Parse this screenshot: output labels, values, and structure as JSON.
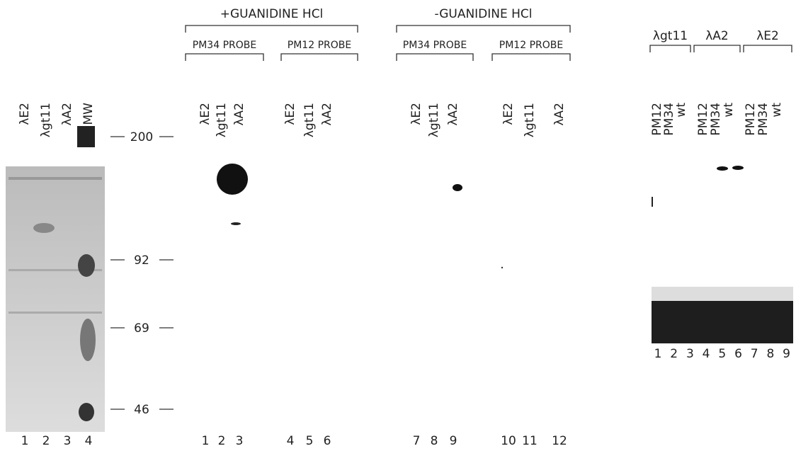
{
  "panel_a": {
    "lanes": [
      "λE2",
      "λgt11",
      "λA2",
      "MW"
    ],
    "lane_numbers": [
      "1",
      "2",
      "3",
      "4"
    ]
  },
  "markers": [
    "200",
    "92",
    "69",
    "46"
  ],
  "panel_b": {
    "groups": [
      {
        "title": "+GUANIDINE HCl",
        "probes": [
          {
            "label": "PM34 PROBE",
            "lanes": [
              "λE2",
              "λgt11",
              "λA2"
            ],
            "lane_numbers": [
              "1",
              "2",
              "3"
            ]
          },
          {
            "label": "PM12 PROBE",
            "lanes": [
              "λE2",
              "λgt11",
              "λA2"
            ],
            "lane_numbers": [
              "4",
              "5",
              "6"
            ]
          }
        ]
      },
      {
        "title": "-GUANIDINE HCl",
        "probes": [
          {
            "label": "PM34 PROBE",
            "lanes": [
              "λE2",
              "λgt11",
              "λA2"
            ],
            "lane_numbers": [
              "7",
              "8",
              "9"
            ]
          },
          {
            "label": "PM12 PROBE",
            "lanes": [
              "λE2",
              "λgt11",
              "λA2"
            ],
            "lane_numbers": [
              "10",
              "11",
              "12"
            ]
          }
        ]
      }
    ]
  },
  "panel_c": {
    "groups": [
      {
        "label": "λgt11",
        "lanes": [
          "PM12",
          "PM34",
          "wt"
        ]
      },
      {
        "label": "λA2",
        "lanes": [
          "PM12",
          "PM34",
          "wt"
        ]
      },
      {
        "label": "λE2",
        "lanes": [
          "PM12",
          "PM34",
          "wt"
        ]
      }
    ],
    "lane_numbers": [
      "1",
      "2",
      "3",
      "4",
      "5",
      "6",
      "7",
      "8",
      "9"
    ]
  }
}
